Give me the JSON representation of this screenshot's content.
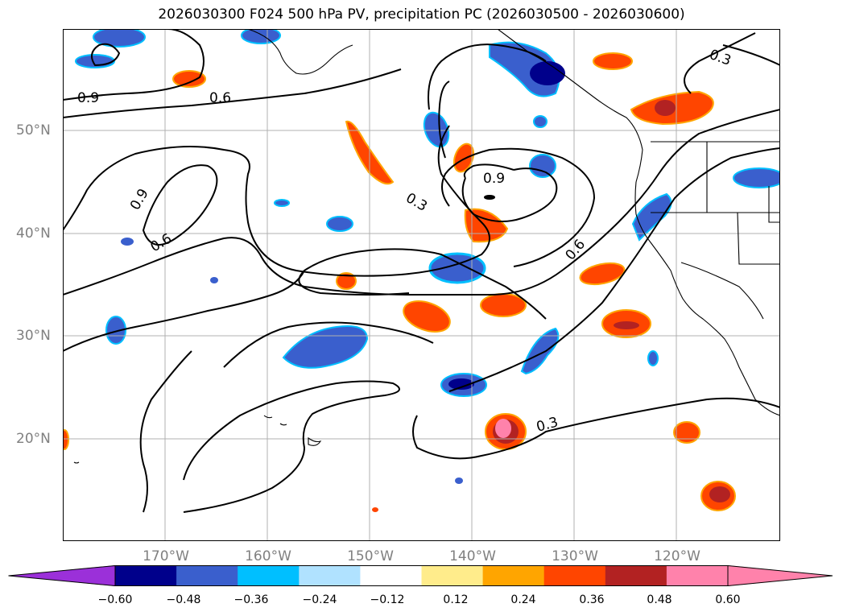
{
  "title": "2026030300 F024 500 hPa PV, precipitation PC (2026030500 - 2026030600)",
  "latitude_labels": [
    "50°N",
    "40°N",
    "30°N",
    "20°N"
  ],
  "longitude_labels": [
    "170°W",
    "160°W",
    "150°W",
    "140°W",
    "130°W",
    "120°W"
  ],
  "contour_labels": [
    "0.9",
    "0.6",
    "0.3",
    "0.9",
    "0.9",
    "0.6",
    "0.6",
    "0.3",
    "0.3"
  ],
  "colorbar": {
    "tick_labels": [
      "−0.60",
      "−0.48",
      "−0.36",
      "−0.24",
      "−0.12",
      "0.12",
      "0.24",
      "0.36",
      "0.48",
      "0.60"
    ],
    "colors": {
      "below_min": "#9b30d9",
      "bins": [
        "#00008b",
        "#3a5fcd",
        "#00bfff",
        "#b0e2ff",
        "#ffffff",
        "#ffec8b",
        "#ffa500",
        "#ff4500",
        "#b22222",
        "#ff82ab"
      ],
      "above_max": "#ff82ab"
    }
  }
}
